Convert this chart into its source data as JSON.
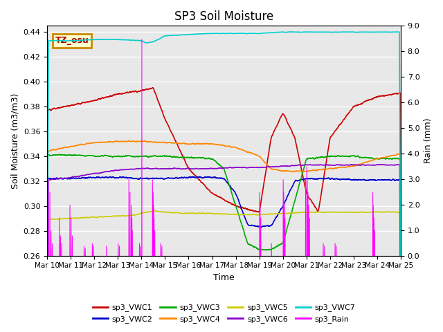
{
  "title": "SP3 Soil Moisture",
  "xlabel": "Time",
  "ylabel_left": "Soil Moisture (m3/m3)",
  "ylabel_right": "Rain (mm)",
  "ylim_left": [
    0.26,
    0.445
  ],
  "ylim_right": [
    0.0,
    9.0
  ],
  "x_tick_labels": [
    "Mar 10",
    "Mar 11",
    "Mar 12",
    "Mar 13",
    "Mar 14",
    "Mar 15",
    "Mar 16",
    "Mar 17",
    "Mar 18",
    "Mar 19",
    "Mar 20",
    "Mar 21",
    "Mar 22",
    "Mar 23",
    "Mar 24",
    "Mar 25"
  ],
  "tz_label": "TZ_osu",
  "bg_color": "#e8e8e8",
  "colors": {
    "VWC1": "#cc0000",
    "VWC2": "#0000cc",
    "VWC3": "#00aa00",
    "VWC4": "#ff8800",
    "VWC5": "#cccc00",
    "VWC6": "#8800cc",
    "VWC7": "#00cccc",
    "Rain": "#ff00ff"
  }
}
